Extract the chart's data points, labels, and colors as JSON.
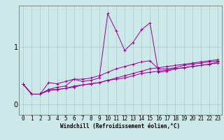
{
  "title": "",
  "xlabel": "Windchill (Refroidissement éolien,°C)",
  "bg_color": "#cce8e8",
  "line_color": "#990099",
  "grid_color": "#aacccc",
  "xlim": [
    -0.5,
    23.5
  ],
  "ylim": [
    -0.18,
    1.72
  ],
  "yticks": [
    0,
    1
  ],
  "xticks": [
    0,
    1,
    2,
    3,
    4,
    5,
    6,
    7,
    8,
    9,
    10,
    11,
    12,
    13,
    14,
    15,
    16,
    17,
    18,
    19,
    20,
    21,
    22,
    23
  ],
  "series": [
    [
      0.35,
      0.18,
      0.18,
      0.24,
      0.26,
      0.28,
      0.32,
      0.34,
      0.36,
      0.38,
      0.42,
      0.44,
      0.46,
      0.5,
      0.54,
      0.56,
      0.58,
      0.6,
      0.62,
      0.64,
      0.66,
      0.68,
      0.7,
      0.72
    ],
    [
      0.35,
      0.18,
      0.18,
      0.26,
      0.3,
      0.32,
      0.44,
      0.4,
      0.42,
      0.46,
      1.58,
      1.28,
      0.94,
      1.08,
      1.3,
      1.42,
      0.56,
      0.58,
      0.62,
      0.64,
      0.66,
      0.68,
      0.7,
      0.74
    ],
    [
      0.35,
      0.18,
      0.18,
      0.38,
      0.36,
      0.4,
      0.44,
      0.44,
      0.46,
      0.5,
      0.56,
      0.62,
      0.66,
      0.7,
      0.74,
      0.76,
      0.62,
      0.62,
      0.64,
      0.68,
      0.7,
      0.72,
      0.74,
      0.76
    ],
    [
      0.35,
      0.18,
      0.18,
      0.26,
      0.26,
      0.28,
      0.3,
      0.34,
      0.36,
      0.38,
      0.42,
      0.46,
      0.5,
      0.54,
      0.58,
      0.62,
      0.64,
      0.66,
      0.68,
      0.7,
      0.72,
      0.74,
      0.76,
      0.78
    ]
  ],
  "marker": "+",
  "markersize": 2.5,
  "linewidth": 0.7,
  "xlabel_fontsize": 5.5,
  "tick_fontsize": 5.5,
  "ytick_fontsize": 7
}
